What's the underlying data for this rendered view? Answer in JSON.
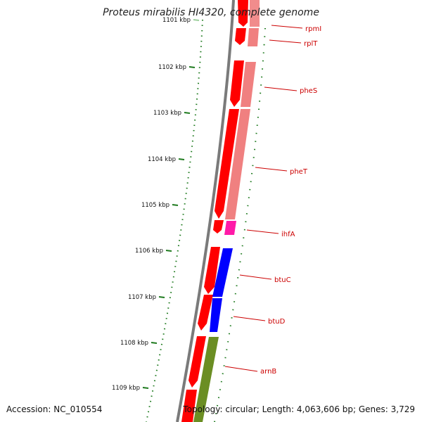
{
  "title": "Proteus mirabilis HI4320, complete genome",
  "accession_text": "Accession: NC_010554",
  "summary_text": "Topology: circular; Length: 4,063,606 bp; Genes: 3,729",
  "colors": {
    "backbone": "#7a7a7a",
    "tick": "#1e7a1e",
    "cds_forward": "#ff0000",
    "cds_reverse": "#f08080",
    "label": "#cc0000",
    "ihfA": "#ff1aa8",
    "btu": "#0000ff",
    "arnB": "#6b8e23"
  },
  "kbp_ticks": [
    {
      "label": "1101 kbp",
      "faded": true
    },
    {
      "label": "1102 kbp"
    },
    {
      "label": "1103 kbp"
    },
    {
      "label": "1104 kbp"
    },
    {
      "label": "1105 kbp"
    },
    {
      "label": "1106 kbp"
    },
    {
      "label": "1107 kbp"
    },
    {
      "label": "1108 kbp"
    },
    {
      "label": "1109 kbp"
    }
  ],
  "gene_labels": [
    "rpmI",
    "rplT",
    "pheS",
    "pheT",
    "ihfA",
    "btuC",
    "btuD",
    "arnB"
  ]
}
